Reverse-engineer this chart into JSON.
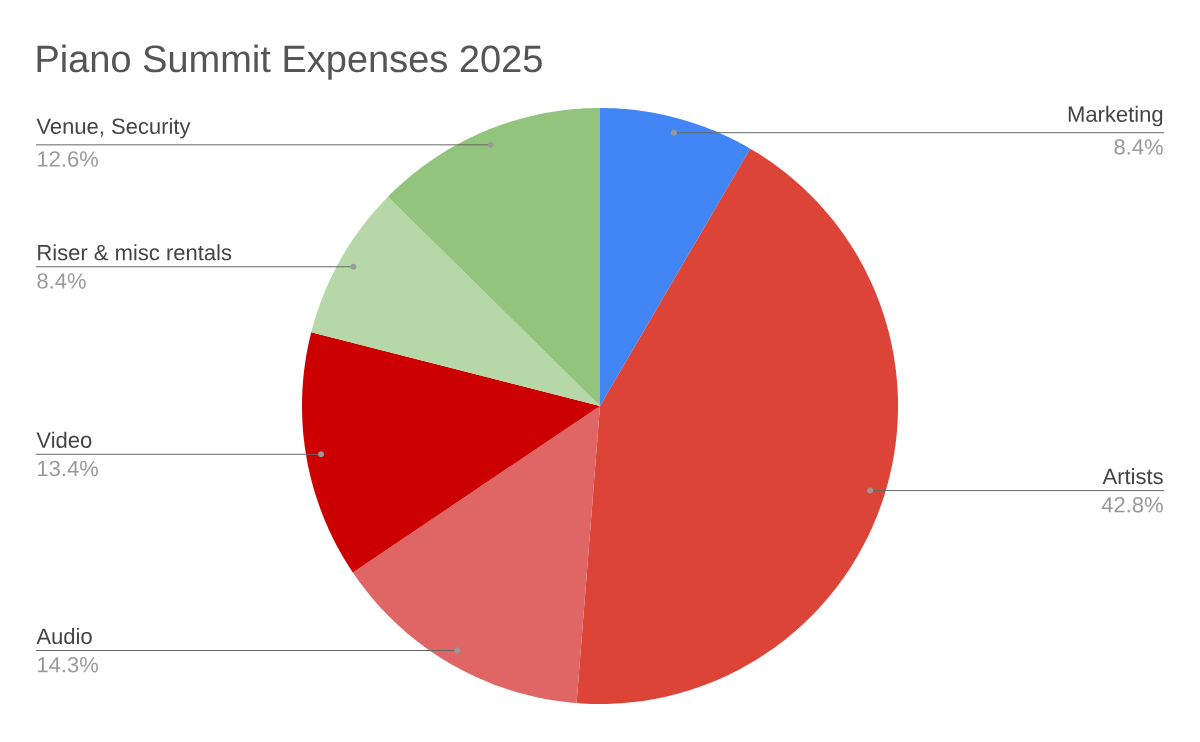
{
  "chart_data": {
    "type": "pie",
    "title": "Piano Summit Expenses 2025",
    "categories": [
      "Marketing",
      "Artists",
      "Audio",
      "Video",
      "Riser & misc rentals",
      "Venue, Security"
    ],
    "values": [
      8.4,
      42.8,
      14.3,
      13.4,
      8.4,
      12.6
    ],
    "colors": [
      "#4285f4",
      "#db4437",
      "#e06666",
      "#cc0000",
      "#b6d7a8",
      "#93c47d"
    ],
    "value_labels": [
      "8.4%",
      "42.8%",
      "14.3%",
      "13.4%",
      "8.4%",
      "12.6%"
    ]
  }
}
